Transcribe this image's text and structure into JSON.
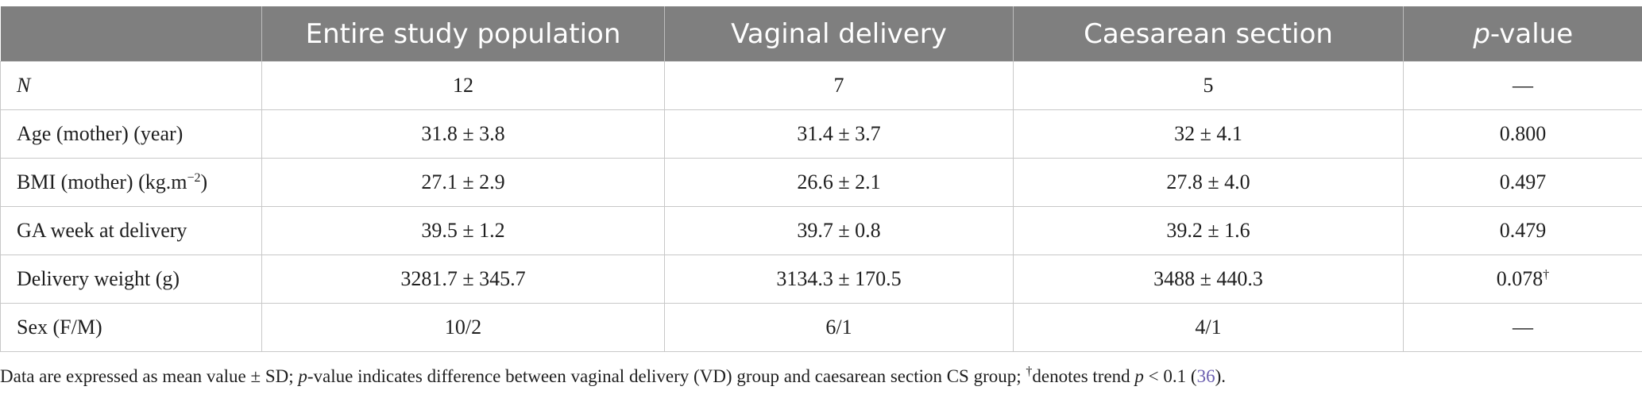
{
  "table": {
    "headers": {
      "label": "",
      "col1": "Entire study population",
      "col2": "Vaginal delivery",
      "col3": "Caesarean section",
      "col4_italic": "p",
      "col4_rest": "-value"
    },
    "rows": [
      {
        "label": "N",
        "c1": "12",
        "c2": "7",
        "c3": "5",
        "c4": "—",
        "c4_sup": ""
      },
      {
        "label": "Age (mother) (year)",
        "c1": "31.8 ± 3.8",
        "c2": "31.4 ± 3.7",
        "c3": "32 ± 4.1",
        "c4": "0.800",
        "c4_sup": ""
      },
      {
        "label": "BMI (mother) (kg.m",
        "label_sup": "−2",
        "label_end": ")",
        "c1": "27.1 ± 2.9",
        "c2": "26.6 ± 2.1",
        "c3": "27.8 ± 4.0",
        "c4": "0.497",
        "c4_sup": ""
      },
      {
        "label": "GA week at delivery",
        "c1": "39.5 ± 1.2",
        "c2": "39.7 ± 0.8",
        "c3": "39.2 ± 1.6",
        "c4": "0.479",
        "c4_sup": ""
      },
      {
        "label": "Delivery weight (g)",
        "c1": "3281.7 ± 345.7",
        "c2": "3134.3 ± 170.5",
        "c3": "3488 ± 440.3",
        "c4": "0.078",
        "c4_sup": "†"
      },
      {
        "label": "Sex (F/M)",
        "c1": "10/2",
        "c2": "6/1",
        "c3": "4/1",
        "c4": "—",
        "c4_sup": ""
      }
    ]
  },
  "footnote": {
    "part1": "Data are expressed as mean value ± SD; ",
    "p1": "p",
    "part2": "-value indicates difference between vaginal delivery (VD) group and caesarean section CS group; ",
    "dagger": "†",
    "part3": "denotes trend ",
    "p2": "p",
    "part4": " < 0.1 (",
    "ref": "36",
    "part5": ")."
  }
}
